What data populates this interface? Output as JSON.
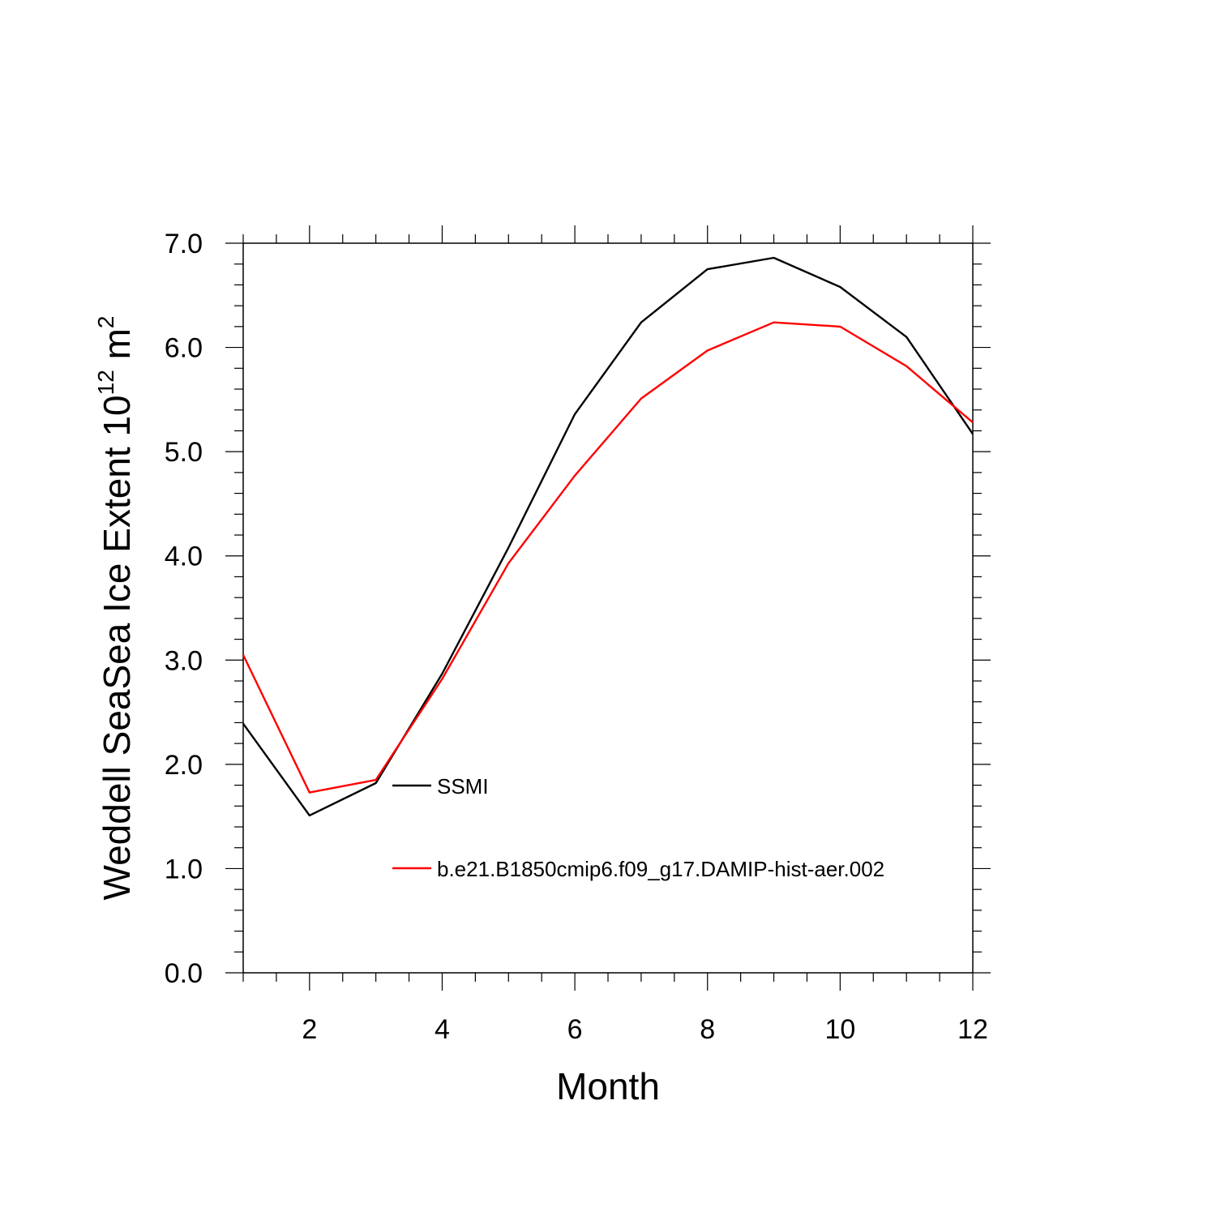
{
  "chart_data": {
    "type": "line",
    "title": "",
    "xlabel": "Month",
    "ylabel": {
      "main": "Weddell SeaSea Ice Extent 10",
      "superscript_1": "12",
      "unit": " m",
      "superscript_2": "2"
    },
    "xlim": [
      1,
      12
    ],
    "ylim": [
      0.0,
      7.0
    ],
    "x_ticks": [
      2,
      4,
      6,
      8,
      10,
      12
    ],
    "y_ticks": [
      "0.0",
      "1.0",
      "2.0",
      "3.0",
      "4.0",
      "5.0",
      "6.0",
      "7.0"
    ],
    "grid": false,
    "legend_placement": "inside-center",
    "x": [
      1,
      2,
      3,
      4,
      5,
      6,
      7,
      8,
      9,
      10,
      11,
      12
    ],
    "series": [
      {
        "name": "SSMI",
        "color": "#000000",
        "values": [
          2.39,
          1.51,
          1.82,
          2.87,
          4.08,
          5.36,
          6.24,
          6.75,
          6.86,
          6.58,
          6.1,
          5.17
        ]
      },
      {
        "name": "b.e21.B1850cmip6.f09_g17.DAMIP-hist-aer.002",
        "color": "#ff0000",
        "values": [
          3.05,
          1.73,
          1.85,
          2.82,
          3.93,
          4.77,
          5.51,
          5.97,
          6.24,
          6.2,
          5.82,
          5.28
        ]
      }
    ]
  }
}
